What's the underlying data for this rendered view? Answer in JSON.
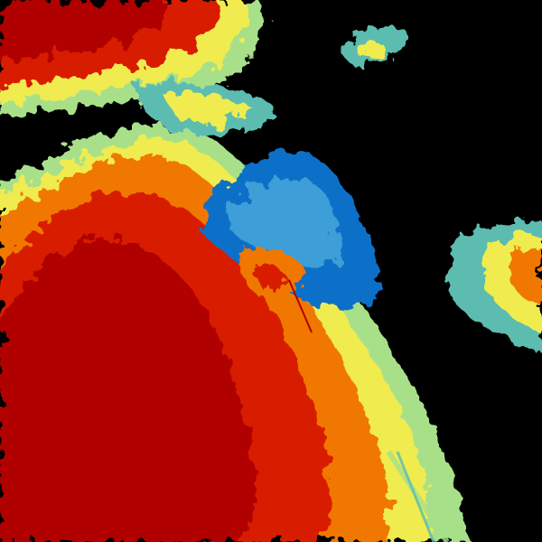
{
  "radar": {
    "background": "#000000",
    "palette": {
      "dark_red": "#b00000",
      "red": "#d81e00",
      "orange": "#f07800",
      "amber": "#f5b000",
      "yellow": "#f0ec50",
      "light_green": "#a8e08a",
      "teal": "#5cbcb0",
      "light_blue": "#3e9ed8",
      "blue": "#1070c8"
    }
  }
}
